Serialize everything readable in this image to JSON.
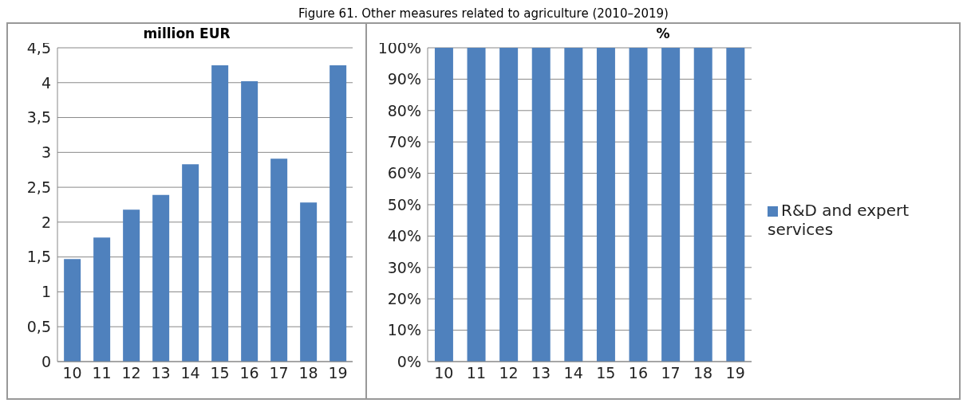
{
  "chart_data": [
    {
      "type": "bar",
      "title": "million EUR",
      "annotations": [
        "Figure 61. Other measures related to agriculture (2010–2019)"
      ],
      "categories": [
        "10",
        "11",
        "12",
        "13",
        "14",
        "15",
        "16",
        "17",
        "18",
        "19"
      ],
      "values": [
        1.47,
        1.78,
        2.18,
        2.39,
        2.83,
        4.25,
        4.02,
        2.91,
        2.28,
        4.25
      ],
      "color": "#4f81bd",
      "ylim": [
        0,
        4.5
      ],
      "yticks": [
        0,
        {
          "value": 0.5,
          "label": "0,5"
        },
        1,
        {
          "value": 1.5,
          "label": "1,5"
        },
        2,
        {
          "value": 2.5,
          "label": "2,5"
        },
        3,
        {
          "value": 3.5,
          "label": "3,5"
        },
        4,
        {
          "value": 4.5,
          "label": "4,5"
        }
      ],
      "grid": "y",
      "legend": false
    },
    {
      "type": "bar",
      "title": "%",
      "categories": [
        "10",
        "11",
        "12",
        "13",
        "14",
        "15",
        "16",
        "17",
        "18",
        "19"
      ],
      "series": [
        {
          "name": "R&D and expert services",
          "color": "#4f81bd",
          "values": [
            100,
            100,
            100,
            100,
            100,
            100,
            100,
            100,
            100,
            100
          ]
        }
      ],
      "ylim": [
        0,
        100
      ],
      "yticks": [
        {
          "value": 0,
          "label": "0%"
        },
        {
          "value": 10,
          "label": "10%"
        },
        {
          "value": 20,
          "label": "20%"
        },
        {
          "value": 30,
          "label": "30%"
        },
        {
          "value": 40,
          "label": "40%"
        },
        {
          "value": 50,
          "label": "50%"
        },
        {
          "value": 60,
          "label": "60%"
        },
        {
          "value": 70,
          "label": "70%"
        },
        {
          "value": 80,
          "label": "80%"
        },
        {
          "value": 90,
          "label": "90%"
        },
        {
          "value": 100,
          "label": "100%"
        }
      ],
      "grid": "y",
      "legend": "right"
    }
  ]
}
